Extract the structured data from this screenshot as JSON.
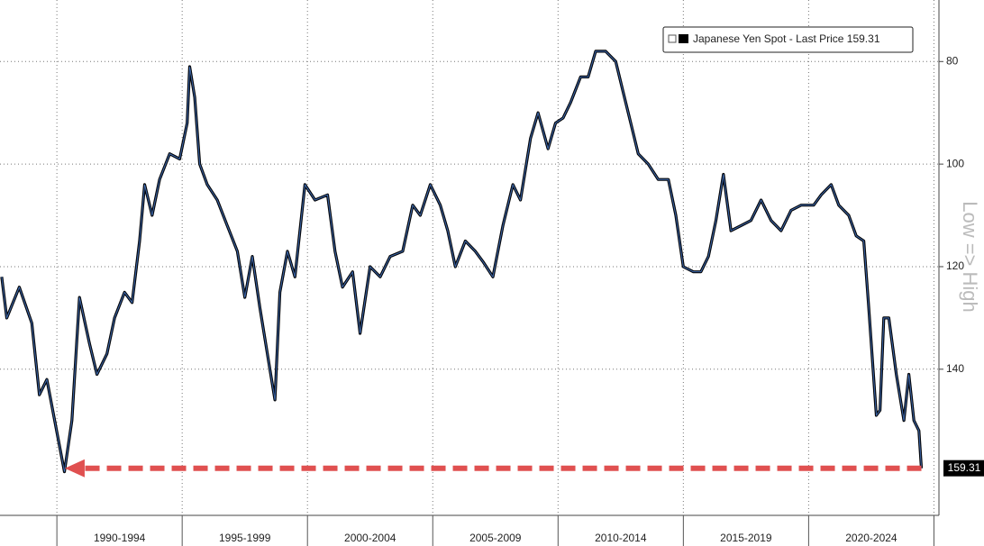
{
  "chart_data": {
    "type": "line",
    "legend_text": "Japanese Yen Spot - Last Price 159.31",
    "annotation": "Low => High",
    "y_inverted": true,
    "grid": true,
    "xlim": [
      1987.73,
      2025.2
    ],
    "xticks": [
      {
        "value": 1992.5,
        "label": "1990-1994"
      },
      {
        "value": 1997.5,
        "label": "1995-1999"
      },
      {
        "value": 2002.5,
        "label": "2000-2004"
      },
      {
        "value": 2007.5,
        "label": "2005-2009"
      },
      {
        "value": 2012.5,
        "label": "2010-2014"
      },
      {
        "value": 2017.5,
        "label": "2015-2019"
      },
      {
        "value": 2022.5,
        "label": "2020-2024"
      }
    ],
    "x_separators": [
      1990,
      1995,
      2000,
      2005,
      2010,
      2015,
      2020,
      2025
    ],
    "ylim": [
      68,
      168.5
    ],
    "yticks": [
      80,
      100,
      120,
      140
    ],
    "x": [
      1987.8,
      1988.0,
      1988.5,
      1989.0,
      1989.3,
      1989.6,
      1990.3,
      1990.6,
      1990.9,
      1991.3,
      1991.6,
      1992.0,
      1992.3,
      1992.7,
      1993.0,
      1993.3,
      1993.5,
      1993.8,
      1994.1,
      1994.5,
      1994.9,
      1995.2,
      1995.3,
      1995.5,
      1995.7,
      1996.0,
      1996.4,
      1996.8,
      1997.2,
      1997.5,
      1997.8,
      1998.1,
      1998.5,
      1998.7,
      1998.9,
      1999.2,
      1999.5,
      1999.9,
      2000.3,
      2000.8,
      2001.1,
      2001.4,
      2001.8,
      2002.1,
      2002.5,
      2002.9,
      2003.3,
      2003.8,
      2004.2,
      2004.5,
      2004.9,
      2005.3,
      2005.6,
      2005.9,
      2006.3,
      2006.7,
      2007.0,
      2007.4,
      2007.8,
      2008.2,
      2008.5,
      2008.9,
      2009.2,
      2009.6,
      2009.9,
      2010.2,
      2010.5,
      2010.9,
      2011.2,
      2011.5,
      2011.9,
      2012.3,
      2012.6,
      2012.9,
      2013.2,
      2013.6,
      2014.0,
      2014.4,
      2014.7,
      2015.0,
      2015.4,
      2015.7,
      2016.0,
      2016.3,
      2016.6,
      2016.9,
      2017.3,
      2017.7,
      2018.1,
      2018.5,
      2018.9,
      2019.3,
      2019.7,
      2020.2,
      2020.5,
      2020.9,
      2021.2,
      2021.6,
      2021.9,
      2022.2,
      2022.4,
      2022.7,
      2022.85,
      2023.0,
      2023.2,
      2023.5,
      2023.8,
      2024.0,
      2024.2,
      2024.4,
      2024.5
    ],
    "series": [
      {
        "name": "Japanese Yen Spot - Last Price",
        "color": "#15233d",
        "values": [
          122,
          130,
          124,
          131,
          145,
          142,
          160,
          150,
          126,
          135,
          141,
          137,
          130,
          125,
          127,
          115,
          104,
          110,
          103,
          98,
          99,
          92,
          81,
          87,
          100,
          104,
          107,
          112,
          117,
          126,
          118,
          128,
          140,
          146,
          125,
          117,
          122,
          104,
          107,
          106,
          117,
          124,
          121,
          133,
          120,
          122,
          118,
          117,
          108,
          110,
          104,
          108,
          113,
          120,
          115,
          117,
          119,
          122,
          112,
          104,
          107,
          95,
          90,
          97,
          92,
          91,
          88,
          83,
          83,
          78,
          78,
          80,
          86,
          92,
          98,
          100,
          103,
          103,
          110,
          120,
          121,
          121,
          118,
          111,
          102,
          113,
          112,
          111,
          107,
          111,
          113,
          109,
          108,
          108,
          106,
          104,
          108,
          110,
          114,
          115,
          128,
          149,
          148,
          130,
          130,
          141,
          150,
          141,
          150,
          152,
          159.31
        ]
      }
    ]
  }
}
